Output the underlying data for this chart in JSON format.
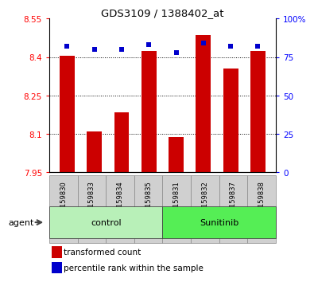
{
  "title": "GDS3109 / 1388402_at",
  "samples": [
    "GSM159830",
    "GSM159833",
    "GSM159834",
    "GSM159835",
    "GSM159831",
    "GSM159832",
    "GSM159837",
    "GSM159838"
  ],
  "red_values": [
    8.405,
    8.108,
    8.185,
    8.425,
    8.088,
    8.485,
    8.355,
    8.425
  ],
  "blue_values": [
    82,
    80,
    80,
    83,
    78,
    84,
    82,
    82
  ],
  "groups": [
    {
      "label": "control",
      "start": 0,
      "end": 4,
      "color": "#b8f0b8"
    },
    {
      "label": "Sunitinib",
      "start": 4,
      "end": 8,
      "color": "#55ee55"
    }
  ],
  "ylim_left": [
    7.95,
    8.55
  ],
  "ylim_right": [
    0,
    100
  ],
  "yticks_left": [
    7.95,
    8.1,
    8.25,
    8.4,
    8.55
  ],
  "yticks_right": [
    0,
    25,
    50,
    75,
    100
  ],
  "ytick_labels_left": [
    "7.95",
    "8.1",
    "8.25",
    "8.4",
    "8.55"
  ],
  "ytick_labels_right": [
    "0",
    "25",
    "50",
    "75",
    "100%"
  ],
  "bar_color": "#cc0000",
  "dot_color": "#0000cc",
  "bar_width": 0.55,
  "grid_color": "#000000",
  "agent_label": "agent",
  "legend_red": "transformed count",
  "legend_blue": "percentile rank within the sample",
  "background_plot": "#ffffff",
  "background_label": "#d0d0d0",
  "figsize": [
    3.85,
    3.54
  ],
  "dpi": 100
}
